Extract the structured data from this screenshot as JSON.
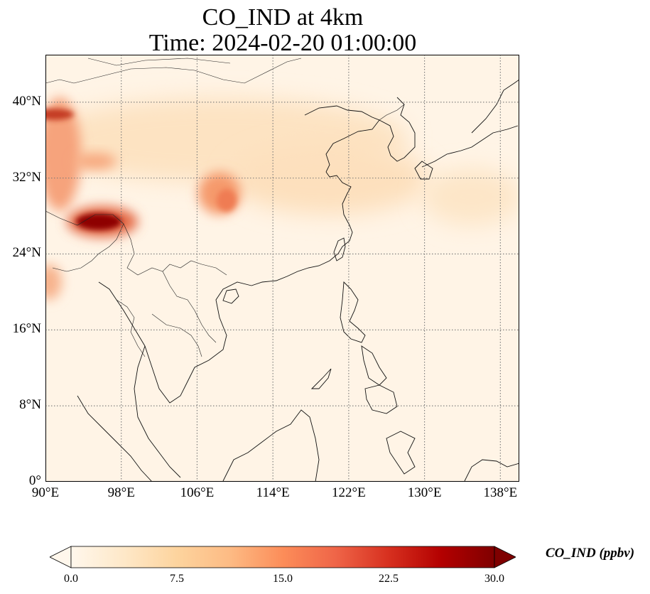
{
  "title": {
    "line1": "CO_IND at 4km",
    "line2": "Time: 2024-02-20 01:00:00"
  },
  "map": {
    "region": "East and Southeast Asia",
    "lon_range": [
      90,
      140
    ],
    "lat_range": [
      0,
      45
    ],
    "lat_ticks": [
      "0°",
      "8°N",
      "16°N",
      "24°N",
      "32°N",
      "40°N"
    ],
    "lat_values": [
      0,
      8,
      16,
      24,
      32,
      40
    ],
    "lon_ticks": [
      "90°E",
      "98°E",
      "106°E",
      "114°E",
      "122°E",
      "130°E",
      "138°E"
    ],
    "lon_values": [
      90,
      98,
      106,
      114,
      122,
      130,
      138
    ],
    "gridlines": "dotted",
    "coastlines": true,
    "country_borders": true,
    "colormap": "OrRd"
  },
  "colorbar": {
    "label": "CO_IND (ppbv)",
    "ticks": [
      "0.0",
      "7.5",
      "15.0",
      "22.5",
      "30.0"
    ],
    "min": 0,
    "max": 30,
    "extend": "both",
    "colors": [
      "#fff7ec",
      "#fee8c8",
      "#fdd49e",
      "#fdbb84",
      "#fc8d59",
      "#ef6548",
      "#d7301f",
      "#b30000",
      "#7f0000"
    ]
  }
}
